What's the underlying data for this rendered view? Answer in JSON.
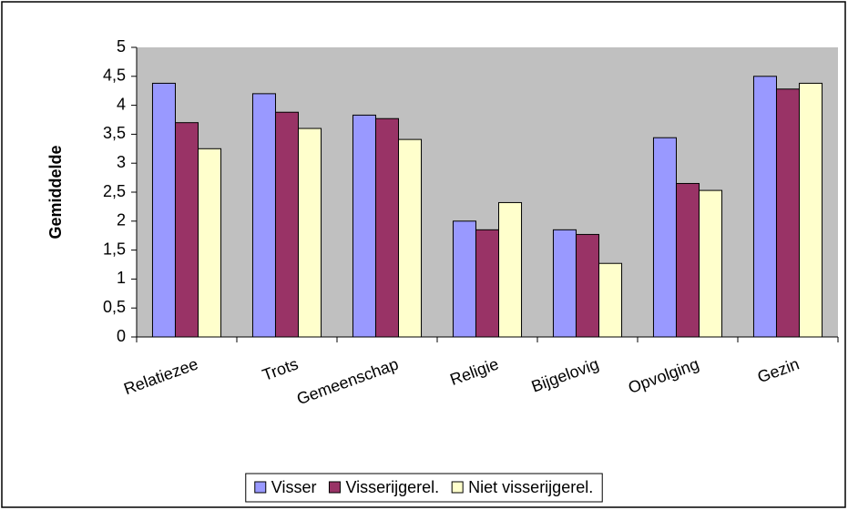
{
  "chart_data": {
    "type": "bar",
    "y_label": "Gemiddelde",
    "categories": [
      "Relatiezee",
      "Trots",
      "Gemeenschap",
      "Religie",
      "Bijgelovig",
      "Opvolging",
      "Gezin"
    ],
    "series": [
      {
        "name": "Visser",
        "color": "#9999ff",
        "values": [
          4.38,
          4.2,
          3.83,
          2.0,
          1.85,
          3.44,
          4.5
        ]
      },
      {
        "name": "Visserijgerel.",
        "color": "#993366",
        "values": [
          3.7,
          3.88,
          3.77,
          1.85,
          1.77,
          2.65,
          4.28
        ]
      },
      {
        "name": "Niet visserijgerel.",
        "color": "#ffffcc",
        "values": [
          3.25,
          3.6,
          3.41,
          2.32,
          1.27,
          2.53,
          4.38
        ]
      }
    ],
    "ylim": [
      0,
      5
    ],
    "yticks": [
      0,
      {
        "value": 0.5,
        "label": "0,5"
      },
      1,
      {
        "value": 1.5,
        "label": "1,5"
      },
      2,
      {
        "value": 2.5,
        "label": "2,5"
      },
      3,
      {
        "value": 3.5,
        "label": "3,5"
      },
      4,
      {
        "value": 4.5,
        "label": "4,5"
      },
      5
    ],
    "plot_background": "#c0c0c0",
    "legend": "bottom"
  }
}
